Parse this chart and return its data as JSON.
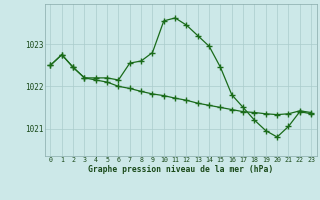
{
  "xlabel": "Graphe pression niveau de la mer (hPa)",
  "background_color": "#cce8e8",
  "fig_bg_color": "#cce8e8",
  "line_color": "#1a6b1a",
  "grid_color": "#aacccc",
  "hours": [
    0,
    1,
    2,
    3,
    4,
    5,
    6,
    7,
    8,
    9,
    10,
    11,
    12,
    13,
    14,
    15,
    16,
    17,
    18,
    19,
    20,
    21,
    22,
    23
  ],
  "series1": [
    1022.5,
    1022.75,
    1022.45,
    1022.2,
    1022.2,
    1022.2,
    1022.15,
    1022.55,
    1022.6,
    1022.8,
    1023.55,
    1023.62,
    1023.45,
    1023.2,
    1022.95,
    1022.45,
    1021.8,
    1021.5,
    1021.2,
    1020.95,
    1020.8,
    1021.05,
    1021.4,
    1021.35
  ],
  "series2": [
    1022.5,
    1022.75,
    1022.45,
    1022.2,
    1022.15,
    1022.1,
    1022.0,
    1021.95,
    1021.88,
    1021.82,
    1021.78,
    1021.72,
    1021.67,
    1021.6,
    1021.55,
    1021.5,
    1021.45,
    1021.4,
    1021.38,
    1021.35,
    1021.33,
    1021.35,
    1021.42,
    1021.38
  ],
  "yticks": [
    1021,
    1022,
    1023
  ],
  "ylim": [
    1020.35,
    1023.95
  ],
  "xlim": [
    -0.5,
    23.5
  ]
}
